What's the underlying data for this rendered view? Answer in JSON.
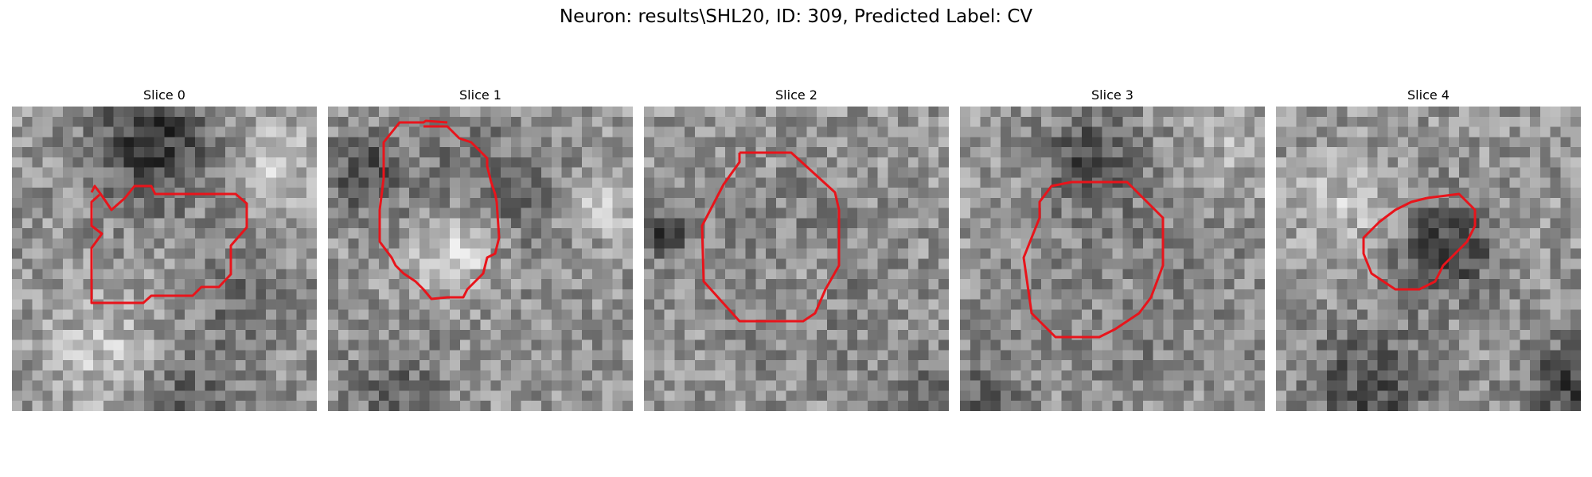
{
  "figure": {
    "title": "Neuron: results\\SHL20, ID: 309, Predicted Label: CV",
    "contour_color": "#e8141b",
    "colormap": "gray",
    "slices": [
      {
        "label": "Slice 0"
      },
      {
        "label": "Slice 1"
      },
      {
        "label": "Slice 2"
      },
      {
        "label": "Slice 3"
      },
      {
        "label": "Slice 4"
      }
    ]
  }
}
